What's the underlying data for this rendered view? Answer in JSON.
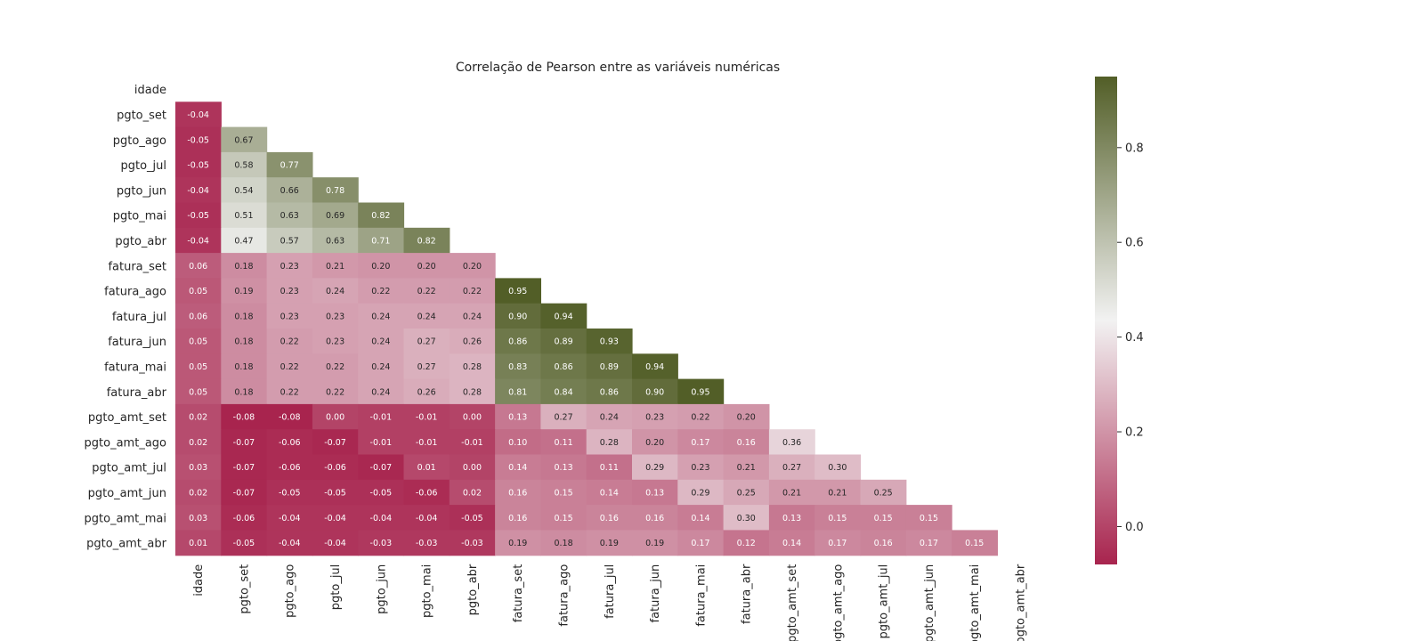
{
  "chart_data": {
    "type": "heatmap",
    "title": "Correlação de Pearson entre as variáveis numéricas",
    "xlabel": "",
    "ylabel": "",
    "variables": [
      "idade",
      "pgto_set",
      "pgto_ago",
      "pgto_jul",
      "pgto_jun",
      "pgto_mai",
      "pgto_abr",
      "fatura_set",
      "fatura_ago",
      "fatura_jul",
      "fatura_jun",
      "fatura_mai",
      "fatura_abr",
      "pgto_amt_set",
      "pgto_amt_ago",
      "pgto_amt_jul",
      "pgto_amt_jun",
      "pgto_amt_mai",
      "pgto_amt_abr"
    ],
    "mask": "upper-triangle",
    "values": [
      [],
      [
        -0.04
      ],
      [
        -0.05,
        0.67
      ],
      [
        -0.05,
        0.58,
        0.77
      ],
      [
        -0.04,
        0.54,
        0.66,
        0.78
      ],
      [
        -0.05,
        0.51,
        0.63,
        0.69,
        0.82
      ],
      [
        -0.04,
        0.47,
        0.57,
        0.63,
        0.71,
        0.82
      ],
      [
        0.06,
        0.18,
        0.23,
        0.21,
        0.2,
        0.2,
        0.2
      ],
      [
        0.05,
        0.19,
        0.23,
        0.24,
        0.22,
        0.22,
        0.22,
        0.95
      ],
      [
        0.06,
        0.18,
        0.23,
        0.23,
        0.24,
        0.24,
        0.24,
        0.9,
        0.94
      ],
      [
        0.05,
        0.18,
        0.22,
        0.23,
        0.24,
        0.27,
        0.26,
        0.86,
        0.89,
        0.93
      ],
      [
        0.05,
        0.18,
        0.22,
        0.22,
        0.24,
        0.27,
        0.28,
        0.83,
        0.86,
        0.89,
        0.94
      ],
      [
        0.05,
        0.18,
        0.22,
        0.22,
        0.24,
        0.26,
        0.28,
        0.81,
        0.84,
        0.86,
        0.9,
        0.95
      ],
      [
        0.02,
        -0.08,
        -0.08,
        -0.0,
        -0.01,
        -0.01,
        -0.0,
        0.13,
        0.27,
        0.24,
        0.23,
        0.22,
        0.2
      ],
      [
        0.02,
        -0.07,
        -0.06,
        -0.07,
        -0.01,
        -0.01,
        -0.01,
        0.1,
        0.11,
        0.28,
        0.2,
        0.17,
        0.16,
        0.36
      ],
      [
        0.03,
        -0.07,
        -0.06,
        -0.06,
        -0.07,
        0.01,
        0.0,
        0.14,
        0.13,
        0.11,
        0.29,
        0.23,
        0.21,
        0.27,
        0.3
      ],
      [
        0.02,
        -0.07,
        -0.05,
        -0.05,
        -0.05,
        -0.06,
        0.02,
        0.16,
        0.15,
        0.14,
        0.13,
        0.29,
        0.25,
        0.21,
        0.21,
        0.25
      ],
      [
        0.03,
        -0.06,
        -0.04,
        -0.04,
        -0.04,
        -0.04,
        -0.05,
        0.16,
        0.15,
        0.16,
        0.16,
        0.14,
        0.3,
        0.13,
        0.15,
        0.15,
        0.15
      ],
      [
        0.01,
        -0.05,
        -0.04,
        -0.04,
        -0.03,
        -0.03,
        -0.03,
        0.19,
        0.18,
        0.19,
        0.19,
        0.17,
        0.12,
        0.14,
        0.17,
        0.16,
        0.17,
        0.15
      ]
    ],
    "vmin": -0.08,
    "vmax": 0.95,
    "colorbar_ticks": [
      "0.0",
      "0.2",
      "0.4",
      "0.6",
      "0.8"
    ],
    "colormap": {
      "low": "#a8244e",
      "mid": "#f2f2f2",
      "high": "#525e27"
    },
    "annotation_format": "2 decimals",
    "grid": false,
    "legend": "colorbar-right"
  }
}
